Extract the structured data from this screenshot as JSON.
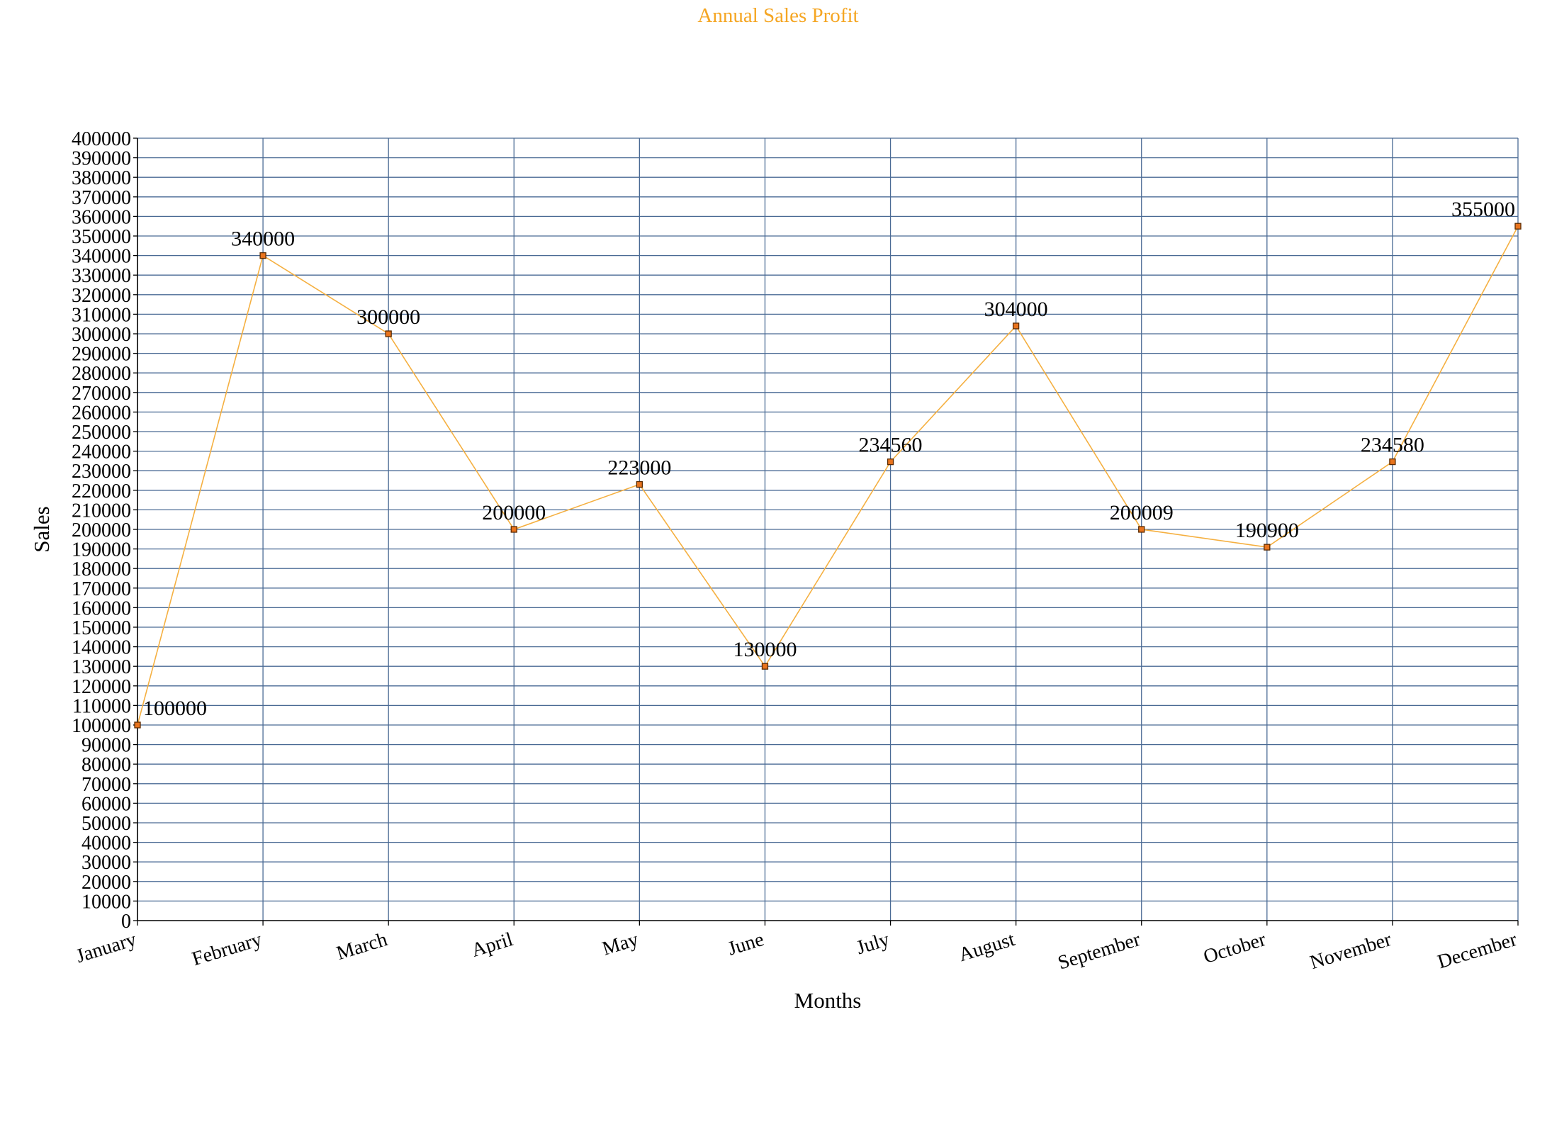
{
  "chart_data": {
    "type": "line",
    "title": "Annual Sales Profit",
    "xlabel": "Months",
    "ylabel": "Sales",
    "categories": [
      "January",
      "February",
      "March",
      "April",
      "May",
      "June",
      "July",
      "August",
      "September",
      "October",
      "November",
      "December"
    ],
    "series": [
      {
        "values": [
          100000,
          340000,
          300000,
          200000,
          223000,
          130000,
          234560,
          304000,
          200009,
          190900,
          234580,
          355000
        ]
      }
    ],
    "ylim": [
      0,
      400000
    ],
    "ytick_step": 10000,
    "grid": true,
    "legend": "none",
    "colors": {
      "title": "#F5A623",
      "line": "#F5B041",
      "marker_fill": "#E8741E",
      "marker_stroke": "#5A2A00",
      "grid": "#4A6A94",
      "axis": "#000000"
    }
  }
}
